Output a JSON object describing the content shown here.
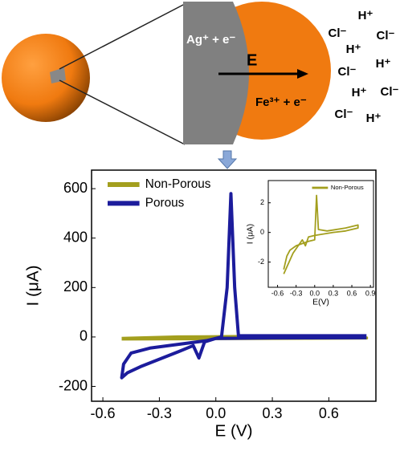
{
  "schematic": {
    "labels": [
      "Ag⁺ + e⁻",
      "E",
      "Fe³⁺ + e⁻"
    ],
    "ions": [
      "H⁺",
      "Cl⁻",
      "Cl⁻",
      "H⁺",
      "H⁺",
      "Cl⁻",
      "H⁺",
      "Cl⁻",
      "Cl⁻",
      "H⁺"
    ]
  },
  "chart_data": [
    {
      "type": "line",
      "xlabel": "E (V)",
      "ylabel": "I (μA)",
      "xlim": [
        -0.66,
        0.85
      ],
      "ylim": [
        -260,
        675
      ],
      "xticks": [
        -0.6,
        -0.3,
        {
          "value": 0,
          "label": "0.0"
        },
        0.3,
        0.6
      ],
      "yticks": [
        -200,
        0,
        200,
        400,
        600
      ],
      "legend": "upper left",
      "series": [
        {
          "name": "Non-Porous",
          "color": "#a39f1e",
          "x": [
            -0.5,
            -0.2,
            0.2,
            0.5,
            0.8,
            0.5,
            0.2,
            -0.2,
            -0.5
          ],
          "values": [
            -8,
            -7,
            -6,
            -5,
            -4,
            1,
            2,
            0,
            -6
          ]
        },
        {
          "name": "Porous",
          "color": "#1c1c9c",
          "x": [
            0.8,
            0.3,
            0.0,
            -0.06,
            -0.09,
            -0.12,
            -0.2,
            -0.3,
            -0.4,
            -0.47,
            -0.5,
            -0.49,
            -0.45,
            -0.35,
            -0.2,
            -0.05,
            0.03,
            0.06,
            0.08,
            0.1,
            0.12,
            0.3,
            0.8
          ],
          "values": [
            -3,
            -4,
            -6,
            -20,
            -85,
            -35,
            -60,
            -90,
            -120,
            -145,
            -165,
            -110,
            -65,
            -45,
            -30,
            -15,
            0,
            200,
            580,
            200,
            5,
            5,
            5
          ]
        }
      ]
    },
    {
      "type": "line",
      "xlabel": "E(V)",
      "ylabel": "I (μA)",
      "xlim": [
        -0.75,
        0.95
      ],
      "ylim": [
        -3.7,
        3.5
      ],
      "xticks": [
        -0.6,
        -0.3,
        {
          "value": 0,
          "label": "0.0"
        },
        0.3,
        0.6,
        0.9
      ],
      "yticks": [
        -2,
        0,
        2
      ],
      "legend": "upper right",
      "series": [
        {
          "name": "Non-Porous",
          "color": "#a39f1e",
          "x": [
            -0.5,
            -0.45,
            -0.4,
            -0.3,
            -0.1,
            0.0,
            0.03,
            0.06,
            0.2,
            0.5,
            0.7,
            0.7,
            0.5,
            0.3,
            0.0,
            -0.1,
            -0.15,
            -0.2,
            -0.35,
            -0.5
          ],
          "values": [
            -2.5,
            -1.6,
            -1.2,
            -0.9,
            -0.6,
            -0.5,
            2.5,
            0.2,
            0.1,
            0.3,
            0.5,
            0.3,
            0.1,
            0.0,
            -0.2,
            -0.3,
            -0.9,
            -0.5,
            -1.4,
            -2.8
          ]
        }
      ]
    }
  ]
}
